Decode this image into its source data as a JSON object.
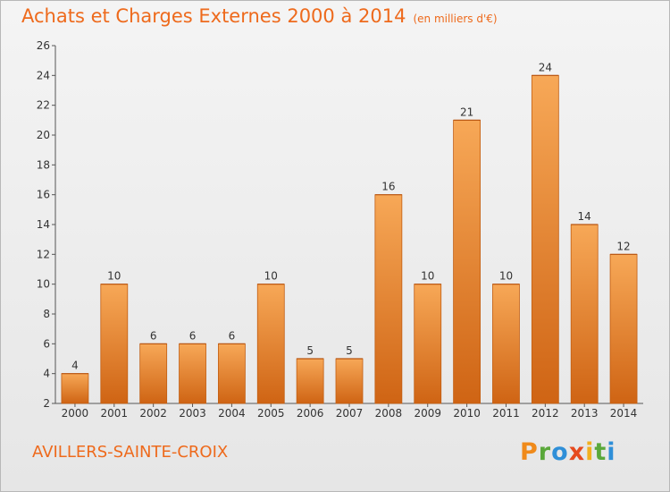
{
  "chart_data": {
    "type": "bar",
    "title": "Achats et Charges Externes 2000 à 2014",
    "unit": "(en milliers d'€)",
    "categories": [
      "2000",
      "2001",
      "2002",
      "2003",
      "2004",
      "2005",
      "2006",
      "2007",
      "2008",
      "2009",
      "2010",
      "2011",
      "2012",
      "2013",
      "2014"
    ],
    "values": [
      4,
      10,
      6,
      6,
      6,
      10,
      5,
      5,
      16,
      10,
      21,
      10,
      24,
      14,
      12
    ],
    "ylim": [
      2,
      26
    ],
    "yticks": [
      2,
      4,
      6,
      8,
      10,
      12,
      14,
      16,
      18,
      20,
      22,
      24,
      26
    ],
    "grid": false,
    "bar_color": "#f08a2c"
  },
  "commune": "AVILLERS-SAINTE-CROIX",
  "logo": {
    "text": "Proxiti"
  }
}
